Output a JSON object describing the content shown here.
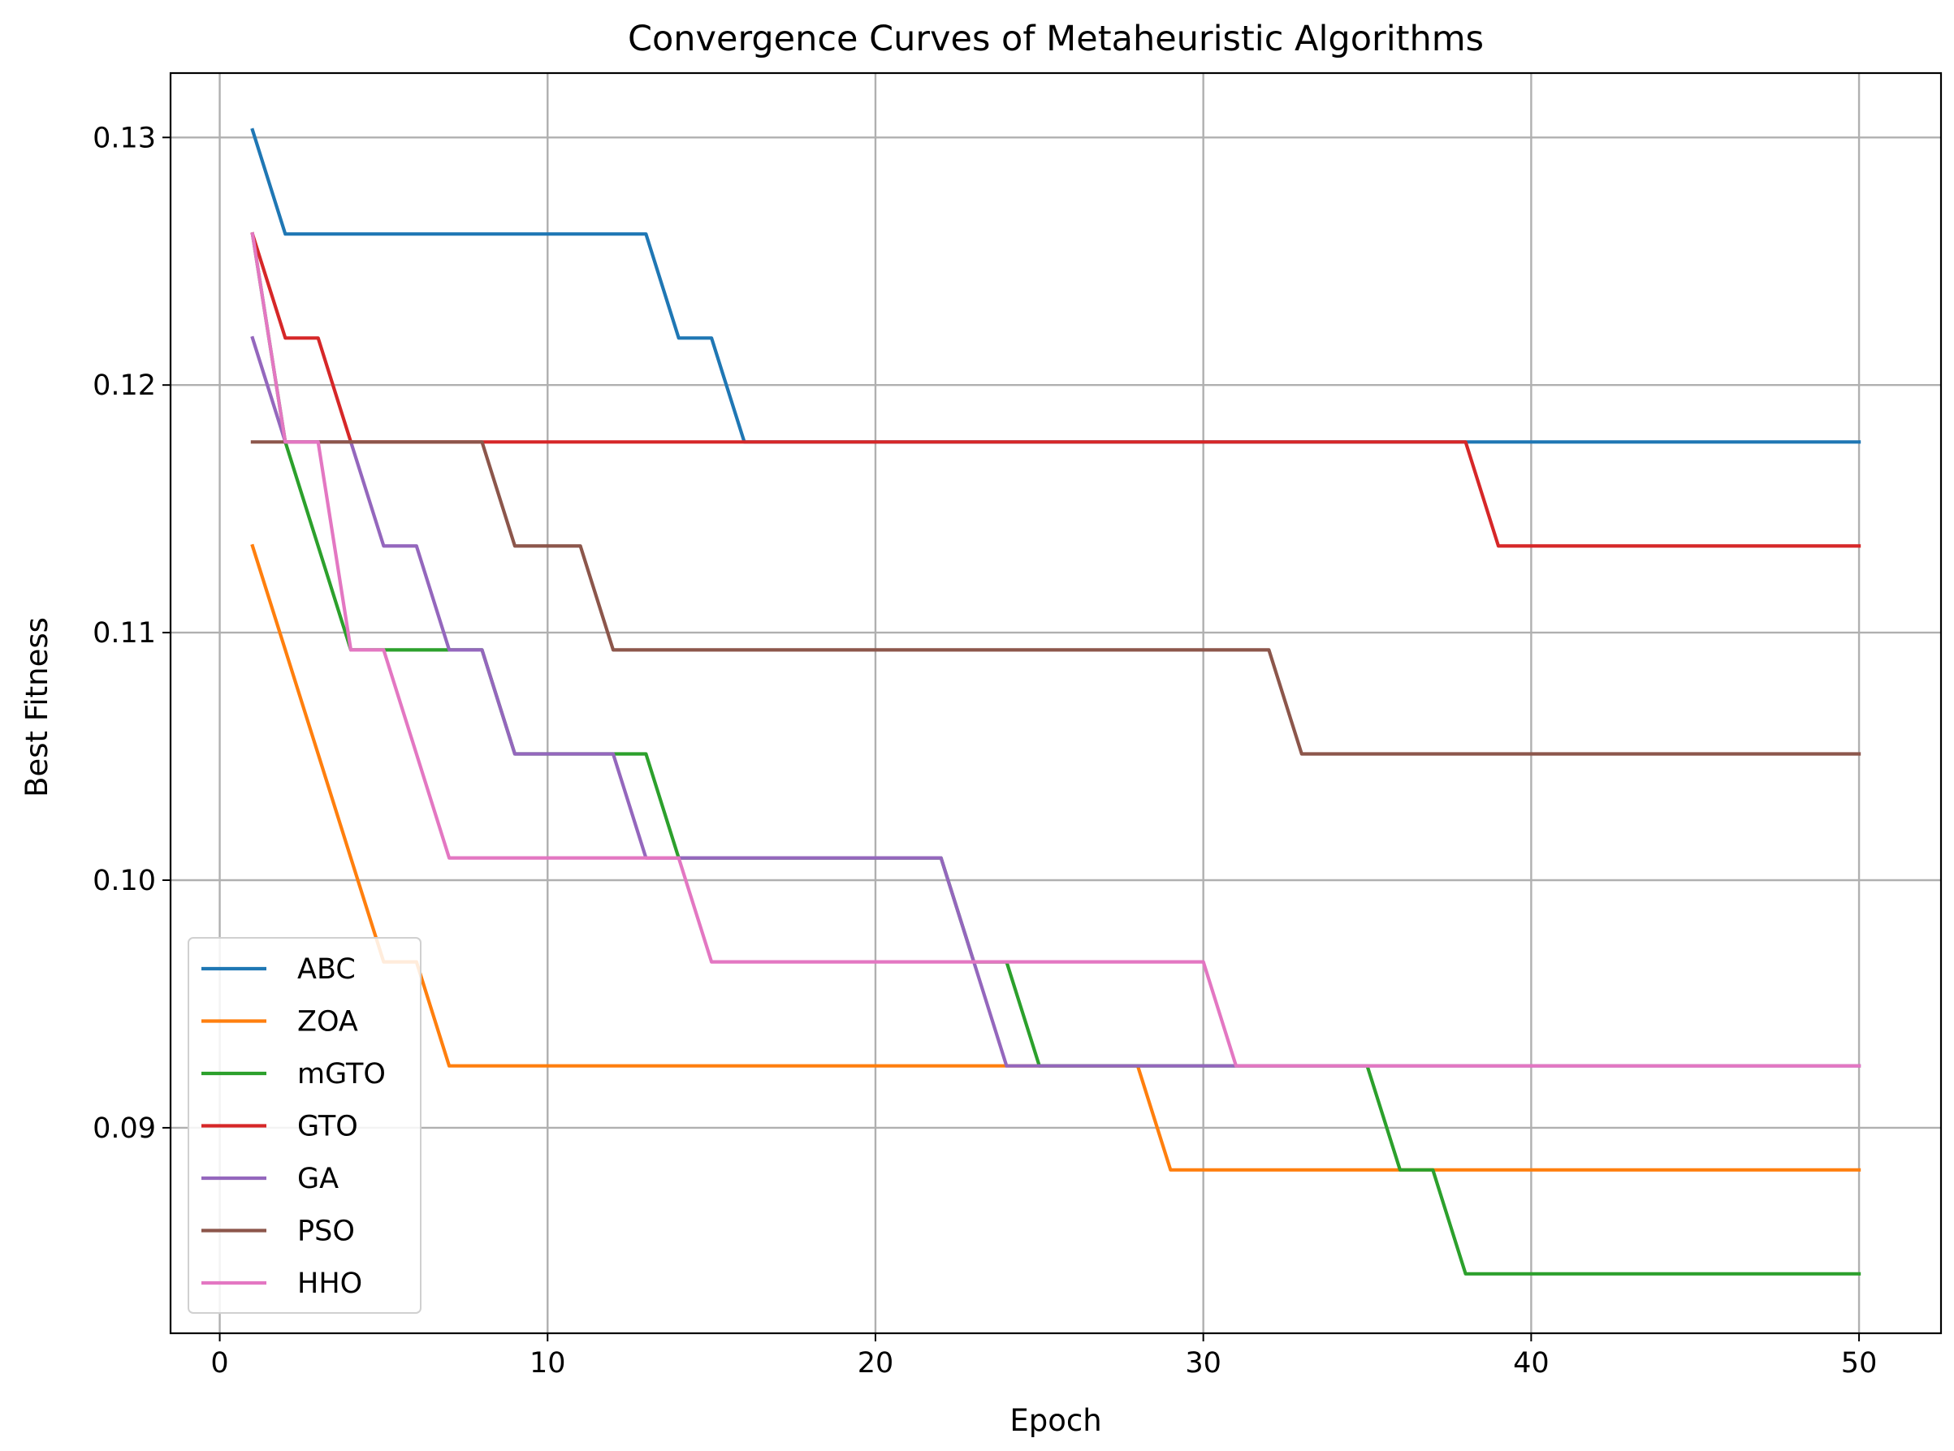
{
  "chart_data": {
    "type": "line",
    "title": "Convergence Curves of Metaheuristic Algorithms",
    "xlabel": "Epoch",
    "ylabel": "Best Fitness",
    "xlim": [
      -1.5,
      52.5
    ],
    "ylim": [
      0.0817,
      0.1326
    ],
    "xticks": [
      0,
      10,
      20,
      30,
      40,
      50
    ],
    "yticks": [
      0.09,
      0.1,
      0.11,
      0.12,
      0.13
    ],
    "ytick_labels": [
      "0.09",
      "0.10",
      "0.11",
      "0.12",
      "0.13"
    ],
    "grid": true,
    "legend_position": "lower-left",
    "epochs": [
      1,
      2,
      3,
      4,
      5,
      6,
      7,
      8,
      9,
      10,
      11,
      12,
      13,
      14,
      15,
      16,
      17,
      18,
      19,
      20,
      21,
      22,
      23,
      24,
      25,
      26,
      27,
      28,
      29,
      30,
      31,
      32,
      33,
      34,
      35,
      36,
      37,
      38,
      39,
      40,
      41,
      42,
      43,
      44,
      45,
      46,
      47,
      48,
      49,
      50
    ],
    "series": [
      {
        "name": "ABC",
        "color": "#1f77b4",
        "values": [
          0.1303,
          0.1261,
          0.1261,
          0.1261,
          0.1261,
          0.1261,
          0.1261,
          0.1261,
          0.1261,
          0.1261,
          0.1261,
          0.1261,
          0.1261,
          0.1219,
          0.1219,
          0.1177,
          0.1177,
          0.1177,
          0.1177,
          0.1177,
          0.1177,
          0.1177,
          0.1177,
          0.1177,
          0.1177,
          0.1177,
          0.1177,
          0.1177,
          0.1177,
          0.1177,
          0.1177,
          0.1177,
          0.1177,
          0.1177,
          0.1177,
          0.1177,
          0.1177,
          0.1177,
          0.1177,
          0.1177,
          0.1177,
          0.1177,
          0.1177,
          0.1177,
          0.1177,
          0.1177,
          0.1177,
          0.1177,
          0.1177,
          0.1177
        ]
      },
      {
        "name": "ZOA",
        "color": "#ff7f0e",
        "values": [
          0.1135,
          0.1093,
          0.1051,
          0.1009,
          0.0967,
          0.0967,
          0.0925,
          0.0925,
          0.0925,
          0.0925,
          0.0925,
          0.0925,
          0.0925,
          0.0925,
          0.0925,
          0.0925,
          0.0925,
          0.0925,
          0.0925,
          0.0925,
          0.0925,
          0.0925,
          0.0925,
          0.0925,
          0.0925,
          0.0925,
          0.0925,
          0.0925,
          0.0883,
          0.0883,
          0.0883,
          0.0883,
          0.0883,
          0.0883,
          0.0883,
          0.0883,
          0.0883,
          0.0883,
          0.0883,
          0.0883,
          0.0883,
          0.0883,
          0.0883,
          0.0883,
          0.0883,
          0.0883,
          0.0883,
          0.0883,
          0.0883,
          0.0883
        ]
      },
      {
        "name": "mGTO",
        "color": "#2ca02c",
        "values": [
          0.1261,
          0.1177,
          0.1135,
          0.1093,
          0.1093,
          0.1093,
          0.1093,
          0.1093,
          0.1051,
          0.1051,
          0.1051,
          0.1051,
          0.1051,
          0.1009,
          0.1009,
          0.1009,
          0.1009,
          0.1009,
          0.1009,
          0.1009,
          0.1009,
          0.1009,
          0.0967,
          0.0967,
          0.0925,
          0.0925,
          0.0925,
          0.0925,
          0.0925,
          0.0925,
          0.0925,
          0.0925,
          0.0925,
          0.0925,
          0.0925,
          0.0883,
          0.0883,
          0.0841,
          0.0841,
          0.0841,
          0.0841,
          0.0841,
          0.0841,
          0.0841,
          0.0841,
          0.0841,
          0.0841,
          0.0841,
          0.0841,
          0.0841
        ]
      },
      {
        "name": "GTO",
        "color": "#d62728",
        "values": [
          0.1261,
          0.1219,
          0.1219,
          0.1177,
          0.1177,
          0.1177,
          0.1177,
          0.1177,
          0.1177,
          0.1177,
          0.1177,
          0.1177,
          0.1177,
          0.1177,
          0.1177,
          0.1177,
          0.1177,
          0.1177,
          0.1177,
          0.1177,
          0.1177,
          0.1177,
          0.1177,
          0.1177,
          0.1177,
          0.1177,
          0.1177,
          0.1177,
          0.1177,
          0.1177,
          0.1177,
          0.1177,
          0.1177,
          0.1177,
          0.1177,
          0.1177,
          0.1177,
          0.1177,
          0.1135,
          0.1135,
          0.1135,
          0.1135,
          0.1135,
          0.1135,
          0.1135,
          0.1135,
          0.1135,
          0.1135,
          0.1135,
          0.1135
        ]
      },
      {
        "name": "GA",
        "color": "#9467bd",
        "values": [
          0.1219,
          0.1177,
          0.1177,
          0.1177,
          0.1135,
          0.1135,
          0.1093,
          0.1093,
          0.1051,
          0.1051,
          0.1051,
          0.1051,
          0.1009,
          0.1009,
          0.1009,
          0.1009,
          0.1009,
          0.1009,
          0.1009,
          0.1009,
          0.1009,
          0.1009,
          0.0967,
          0.0925,
          0.0925,
          0.0925,
          0.0925,
          0.0925,
          0.0925,
          0.0925,
          0.0925,
          0.0925,
          0.0925,
          0.0925,
          0.0925,
          0.0925,
          0.0925,
          0.0925,
          0.0925,
          0.0925,
          0.0925,
          0.0925,
          0.0925,
          0.0925,
          0.0925,
          0.0925,
          0.0925,
          0.0925,
          0.0925,
          0.0925
        ]
      },
      {
        "name": "PSO",
        "color": "#8c564b",
        "values": [
          0.1177,
          0.1177,
          0.1177,
          0.1177,
          0.1177,
          0.1177,
          0.1177,
          0.1177,
          0.1135,
          0.1135,
          0.1135,
          0.1093,
          0.1093,
          0.1093,
          0.1093,
          0.1093,
          0.1093,
          0.1093,
          0.1093,
          0.1093,
          0.1093,
          0.1093,
          0.1093,
          0.1093,
          0.1093,
          0.1093,
          0.1093,
          0.1093,
          0.1093,
          0.1093,
          0.1093,
          0.1093,
          0.1051,
          0.1051,
          0.1051,
          0.1051,
          0.1051,
          0.1051,
          0.1051,
          0.1051,
          0.1051,
          0.1051,
          0.1051,
          0.1051,
          0.1051,
          0.1051,
          0.1051,
          0.1051,
          0.1051,
          0.1051
        ]
      },
      {
        "name": "HHO",
        "color": "#e377c2",
        "values": [
          0.1261,
          0.1177,
          0.1177,
          0.1093,
          0.1093,
          0.1051,
          0.1009,
          0.1009,
          0.1009,
          0.1009,
          0.1009,
          0.1009,
          0.1009,
          0.1009,
          0.0967,
          0.0967,
          0.0967,
          0.0967,
          0.0967,
          0.0967,
          0.0967,
          0.0967,
          0.0967,
          0.0967,
          0.0967,
          0.0967,
          0.0967,
          0.0967,
          0.0967,
          0.0967,
          0.0925,
          0.0925,
          0.0925,
          0.0925,
          0.0925,
          0.0925,
          0.0925,
          0.0925,
          0.0925,
          0.0925,
          0.0925,
          0.0925,
          0.0925,
          0.0925,
          0.0925,
          0.0925,
          0.0925,
          0.0925,
          0.0925,
          0.0925
        ]
      }
    ]
  }
}
